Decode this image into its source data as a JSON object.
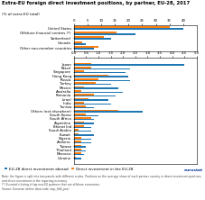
{
  "chart_data": [
    {
      "type": "bar",
      "orientation": "horizontal",
      "title": "Extra-EU foreign direct investment positions, by partner, EU-28, 2017",
      "subtitle": "(% of extra EU total)",
      "categories": [
        "United States",
        "Offshore financial centres (*)",
        "Switzerland",
        "Canada",
        "Other non-member countries"
      ],
      "series": [
        {
          "name": "EU-28 direct investment abroad",
          "values": [
            40.0,
            22.5,
            13.5,
            4.5,
            7.5
          ]
        },
        {
          "name": "Direct investment in the EU-28",
          "values": [
            35.0,
            15.5,
            11.0,
            3.0,
            9.0
          ]
        }
      ],
      "xlim": [
        0,
        45
      ],
      "xticks": [
        0,
        5,
        10,
        15,
        20,
        25,
        30,
        35,
        40
      ],
      "legend": "lower left",
      "annotations": [
        "Note: the figure is split into two panels with different scales. Positions on the average share of each partner country in direct investment positions and direct investment in the reporting economy.\n(*) Eurostat's listing of top non-EU partners that are offshore economies.\nSource: Eurostat (online data code: bop_fdi6_pos)",
        "eurostat"
      ]
    },
    {
      "type": "bar",
      "orientation": "horizontal",
      "categories": [
        "Japan",
        "Brazil",
        "Singapore",
        "Hong Kong",
        "Russia",
        "Turkey",
        "Mexico",
        "Australia",
        "Romania",
        "Israel",
        "India",
        "Tunisia",
        "Others (not elsewhere)",
        "South Korea",
        "South Africa",
        "Argentina",
        "Bharat Ind",
        "Saudi Arabia",
        "Kuwait",
        "Nigeria",
        "Andorra",
        "Taiwan",
        "Thailand",
        "Morocco",
        "Ukraine"
      ],
      "series": [
        {
          "name": "EU-28 direct investment abroad",
          "values": [
            4.5,
            2.3,
            2.1,
            2.2,
            2.3,
            1.5,
            1.8,
            2.0,
            1.7,
            1.4,
            1.5,
            0.8,
            2.8,
            1.0,
            0.8,
            0.8,
            0.7,
            0.7,
            0.8,
            0.7,
            0.7,
            0.5,
            0.5,
            0.4,
            0.3
          ]
        },
        {
          "name": "Direct investment in the EU-28",
          "values": [
            0.7,
            0.7,
            0.4,
            1.4,
            1.0,
            0.9,
            0.4,
            0.3,
            0.8,
            0.6,
            0.4,
            0.5,
            1.8,
            0.5,
            0.7,
            0.4,
            0.4,
            0.2,
            0.2,
            0.3,
            0.3,
            0.3,
            0.3,
            0.3,
            0.1
          ]
        }
      ],
      "xlim": [
        0,
        5.0
      ],
      "xticks": [
        {
          "value": 0,
          "label": "0.0"
        },
        0.5,
        {
          "value": 1,
          "label": "1.0"
        },
        1.5,
        {
          "value": 2,
          "label": "2.0"
        },
        2.5,
        {
          "value": 3,
          "label": "3.0"
        },
        3.5,
        {
          "value": 4,
          "label": "4.0"
        },
        4.5,
        {
          "value": 5,
          "label": "5.0"
        }
      ]
    }
  ]
}
